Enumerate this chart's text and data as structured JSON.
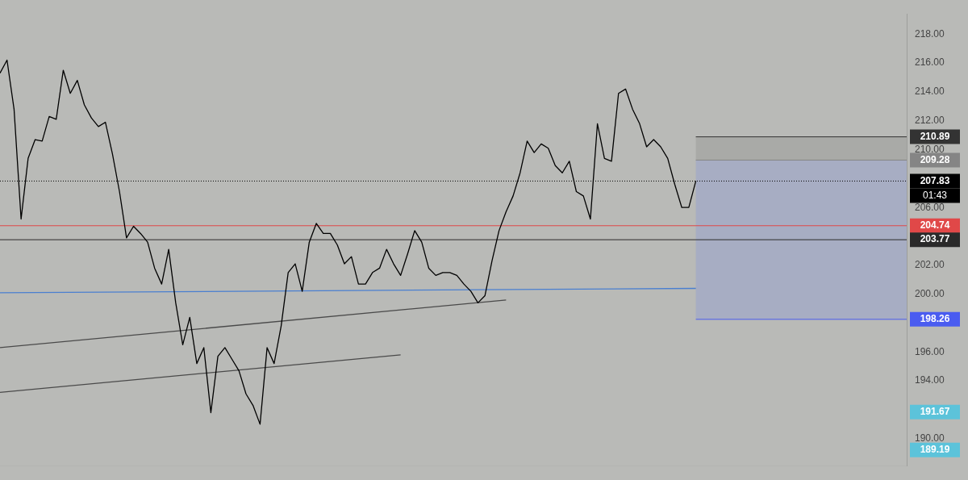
{
  "chart_data": {
    "type": "line",
    "categories": [
      null,
      null,
      null,
      null,
      null,
      null,
      null,
      null,
      null,
      null,
      null,
      null,
      null,
      null,
      null,
      null,
      null,
      null,
      null,
      null,
      null,
      null,
      null,
      null,
      null,
      null,
      null,
      null,
      null,
      null,
      null,
      null,
      null,
      null,
      null,
      null,
      null,
      null,
      null,
      null,
      null,
      null,
      null,
      null,
      null,
      null,
      null,
      null,
      null,
      null,
      null,
      null,
      null,
      null,
      null,
      null,
      null,
      null,
      null,
      null,
      null,
      null,
      null,
      null,
      null,
      null,
      null,
      null,
      null,
      null,
      null,
      null,
      null,
      null,
      null,
      null,
      null,
      null,
      null,
      null,
      null,
      null,
      null,
      null,
      null,
      null,
      null,
      null,
      null,
      null,
      null,
      null,
      null,
      null,
      null,
      null,
      null,
      null,
      null,
      null,
      null,
      null,
      null,
      null,
      null,
      null,
      null,
      null,
      null,
      null,
      null,
      null,
      null,
      null,
      null,
      null,
      null,
      null,
      null,
      null,
      null,
      null,
      null,
      null,
      null,
      null,
      null,
      null,
      null,
      null
    ],
    "series": [
      {
        "color": "#000000",
        "values": [
          215.3,
          216.2,
          212.8,
          205.2,
          209.4,
          210.7,
          210.6,
          212.3,
          212.1,
          215.5,
          213.9,
          214.8,
          213.1,
          212.2,
          211.6,
          211.9,
          209.7,
          207.1,
          203.9,
          204.7,
          204.2,
          203.6,
          201.8,
          200.7,
          203.1,
          199.4,
          196.5,
          198.4,
          195.2,
          196.3,
          191.8,
          195.7,
          196.3,
          195.5,
          194.7,
          193.1,
          192.3,
          191.0,
          196.3,
          195.2,
          197.8,
          201.5,
          202.1,
          200.2,
          203.6,
          204.9,
          204.2,
          204.2,
          203.4,
          202.1,
          202.6,
          200.7,
          200.7,
          201.5,
          201.8,
          203.1,
          202.1,
          201.3,
          202.8,
          204.4,
          203.6,
          201.8,
          201.3,
          201.5,
          201.5,
          201.3,
          200.7,
          200.2,
          199.4,
          199.9,
          202.3,
          204.4,
          205.7,
          206.8,
          208.4,
          210.6,
          209.8,
          210.4,
          210.1,
          208.9,
          208.4,
          209.2,
          207.1,
          206.8,
          205.2,
          211.8,
          209.4,
          209.2,
          213.9,
          214.2,
          212.8,
          211.8,
          210.2,
          210.7,
          210.2,
          209.4,
          207.6,
          206.0,
          206.0,
          207.83,
          null,
          null,
          null,
          null,
          null,
          null,
          null,
          null,
          null,
          null,
          null,
          null,
          null,
          null,
          null,
          null,
          null,
          null,
          null,
          null,
          null,
          null,
          null,
          null,
          null,
          null,
          null,
          null,
          null,
          null
        ]
      },
      {
        "color": "#4a7fd0",
        "values": [
          200.1,
          null,
          null,
          null,
          null,
          null,
          null,
          null,
          null,
          null,
          null,
          null,
          null,
          null,
          null,
          null,
          null,
          null,
          null,
          null,
          null,
          null,
          null,
          null,
          null,
          null,
          null,
          null,
          null,
          null,
          null,
          null,
          null,
          null,
          null,
          null,
          null,
          null,
          null,
          null,
          null,
          null,
          null,
          null,
          null,
          null,
          null,
          null,
          null,
          null,
          null,
          null,
          null,
          null,
          null,
          null,
          null,
          null,
          null,
          null,
          null,
          null,
          null,
          null,
          null,
          null,
          null,
          null,
          null,
          null,
          null,
          null,
          null,
          null,
          null,
          null,
          null,
          null,
          null,
          null,
          null,
          null,
          null,
          null,
          null,
          null,
          null,
          null,
          null,
          null,
          null,
          null,
          null,
          null,
          null,
          null,
          null,
          null,
          null,
          200.4,
          null,
          null,
          null,
          null,
          null,
          null,
          null,
          null,
          null,
          null,
          null,
          null,
          null,
          null,
          null,
          null,
          null,
          null,
          null,
          null,
          null,
          null,
          null,
          null,
          null,
          null,
          null,
          null,
          null,
          null
        ]
      },
      {
        "color": "#4a4a4a",
        "values": [
          196.3,
          null,
          null,
          null,
          null,
          null,
          null,
          null,
          null,
          null,
          null,
          null,
          null,
          null,
          null,
          null,
          null,
          null,
          null,
          null,
          null,
          null,
          null,
          null,
          null,
          null,
          null,
          null,
          null,
          null,
          null,
          null,
          null,
          null,
          null,
          null,
          null,
          null,
          null,
          null,
          null,
          null,
          null,
          null,
          null,
          null,
          null,
          null,
          null,
          null,
          null,
          null,
          null,
          null,
          null,
          null,
          null,
          null,
          null,
          null,
          null,
          null,
          null,
          null,
          null,
          null,
          null,
          null,
          null,
          null,
          null,
          null,
          199.6,
          null,
          null,
          null,
          null,
          null,
          null,
          null,
          null,
          null,
          null,
          null,
          null,
          null,
          null,
          null,
          null,
          null,
          null,
          null,
          null,
          null,
          null,
          null,
          null,
          null,
          null,
          null,
          null,
          null,
          null,
          null,
          null,
          null,
          null,
          null,
          null,
          null,
          null,
          null,
          null,
          null,
          null,
          null,
          null,
          null,
          null,
          null,
          null,
          null,
          null,
          null,
          null,
          null,
          null,
          null,
          null,
          null
        ]
      },
      {
        "color": "#4a4a4a",
        "values": [
          193.2,
          null,
          null,
          null,
          null,
          null,
          null,
          null,
          null,
          null,
          null,
          null,
          null,
          null,
          null,
          null,
          null,
          null,
          null,
          null,
          null,
          null,
          null,
          null,
          null,
          null,
          null,
          null,
          null,
          null,
          null,
          null,
          null,
          null,
          null,
          null,
          null,
          null,
          null,
          null,
          null,
          null,
          null,
          null,
          null,
          null,
          null,
          null,
          null,
          null,
          null,
          null,
          null,
          null,
          null,
          null,
          null,
          195.8,
          null,
          null,
          null,
          null,
          null,
          null,
          null,
          null,
          null,
          null,
          null,
          null,
          null,
          null,
          null,
          null,
          null,
          null,
          null,
          null,
          null,
          null,
          null,
          null,
          null,
          null,
          null,
          null,
          null,
          null,
          null,
          null,
          null,
          null,
          null,
          null,
          null,
          null,
          null,
          null,
          null,
          null,
          null,
          null,
          null,
          null,
          null,
          null,
          null,
          null,
          null,
          null,
          null,
          null,
          null,
          null,
          null,
          null,
          null,
          null,
          null,
          null,
          null,
          null,
          null,
          null,
          null,
          null,
          null,
          null,
          null,
          null
        ]
      }
    ],
    "ylim": [
      188.1,
      219.4
    ],
    "yticks": [
      {
        "value": 190,
        "label": "190.00"
      },
      {
        "value": 194,
        "label": "194.00"
      },
      {
        "value": 196,
        "label": "196.00"
      },
      {
        "value": 200,
        "label": "200.00"
      },
      {
        "value": 202,
        "label": "202.00"
      },
      {
        "value": 206,
        "label": "206.00"
      },
      {
        "value": 210,
        "label": "210.00"
      },
      {
        "value": 212,
        "label": "212.00"
      },
      {
        "value": 214,
        "label": "214.00"
      },
      {
        "value": 216,
        "label": "216.00"
      },
      {
        "value": 218,
        "label": "218.00"
      }
    ],
    "ref_lines": [
      {
        "axis": "y",
        "value": 207.83,
        "label": "207.83",
        "color": "#000000",
        "line_style": "dotted"
      },
      {
        "axis": "y",
        "value": 210.89,
        "label": "210.89",
        "color": "#333333",
        "line_style": "solid"
      },
      {
        "axis": "y",
        "value": 209.28,
        "label": "209.28",
        "color": "#858585",
        "line_style": "solid"
      },
      {
        "axis": "y",
        "value": 204.74,
        "label": "204.74",
        "color": "#e04848",
        "line_style": "solid"
      },
      {
        "axis": "y",
        "value": 203.77,
        "label": "203.77",
        "color": "#2a2a2a",
        "line_style": "solid"
      },
      {
        "axis": "y",
        "value": 198.26,
        "label": "198.26",
        "color": "#4a5cf0",
        "line_style": "solid"
      }
    ],
    "bands": [
      {
        "axis": "y",
        "from": 209.28,
        "to": 210.89,
        "color": "#a6a7a5"
      },
      {
        "axis": "y",
        "from": 198.26,
        "to": 209.28,
        "color": "#a3aac6"
      }
    ],
    "annotations": [
      "01:43",
      "191.67",
      "189.19"
    ],
    "marker": "none",
    "grid": false,
    "legend": false,
    "tick_labels": "y"
  }
}
